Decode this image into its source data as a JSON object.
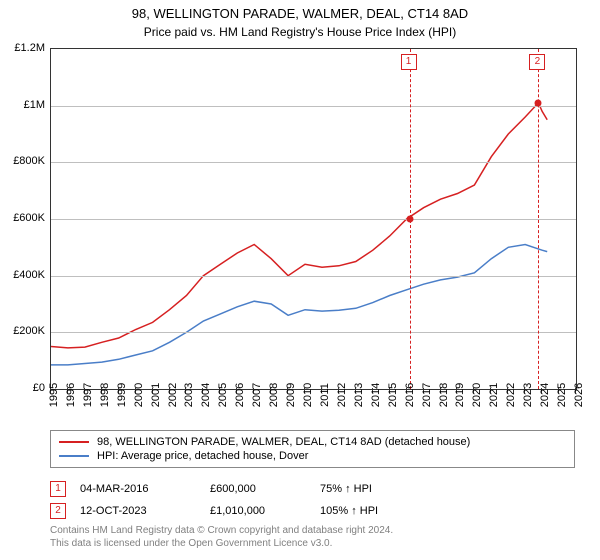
{
  "title": "98, WELLINGTON PARADE, WALMER, DEAL, CT14 8AD",
  "subtitle": "Price paid vs. HM Land Registry's House Price Index (HPI)",
  "chart": {
    "type": "line",
    "xlim": [
      1995,
      2026
    ],
    "ylim": [
      0,
      1200000
    ],
    "ytick_step": 200000,
    "ytick_labels": [
      "£0",
      "£200K",
      "£400K",
      "£600K",
      "£800K",
      "£1M",
      "£1.2M"
    ],
    "xticks": [
      1995,
      1996,
      1997,
      1998,
      1999,
      2000,
      2001,
      2002,
      2003,
      2004,
      2005,
      2006,
      2007,
      2008,
      2009,
      2010,
      2011,
      2012,
      2013,
      2014,
      2015,
      2016,
      2017,
      2018,
      2019,
      2020,
      2021,
      2022,
      2023,
      2024,
      2025,
      2026
    ],
    "grid_color": "#bfbfbf",
    "background_color": "#ffffff",
    "axis_color": "#333333",
    "series": [
      {
        "name": "property",
        "label": "98, WELLINGTON PARADE, WALMER, DEAL, CT14 8AD (detached house)",
        "color": "#d62021",
        "line_width": 1.5,
        "points": [
          [
            1995,
            150000
          ],
          [
            1996,
            145000
          ],
          [
            1997,
            148000
          ],
          [
            1998,
            165000
          ],
          [
            1999,
            180000
          ],
          [
            2000,
            210000
          ],
          [
            2001,
            235000
          ],
          [
            2002,
            280000
          ],
          [
            2003,
            330000
          ],
          [
            2004,
            400000
          ],
          [
            2005,
            440000
          ],
          [
            2006,
            480000
          ],
          [
            2007,
            510000
          ],
          [
            2008,
            460000
          ],
          [
            2009,
            400000
          ],
          [
            2010,
            440000
          ],
          [
            2011,
            430000
          ],
          [
            2012,
            435000
          ],
          [
            2013,
            450000
          ],
          [
            2014,
            490000
          ],
          [
            2015,
            540000
          ],
          [
            2016,
            600000
          ],
          [
            2017,
            640000
          ],
          [
            2018,
            670000
          ],
          [
            2019,
            690000
          ],
          [
            2020,
            720000
          ],
          [
            2021,
            820000
          ],
          [
            2022,
            900000
          ],
          [
            2023,
            960000
          ],
          [
            2023.78,
            1010000
          ],
          [
            2024,
            980000
          ],
          [
            2024.3,
            950000
          ]
        ]
      },
      {
        "name": "hpi",
        "label": "HPI: Average price, detached house, Dover",
        "color": "#4a7ec8",
        "line_width": 1.5,
        "points": [
          [
            1995,
            85000
          ],
          [
            1996,
            85000
          ],
          [
            1997,
            90000
          ],
          [
            1998,
            95000
          ],
          [
            1999,
            105000
          ],
          [
            2000,
            120000
          ],
          [
            2001,
            135000
          ],
          [
            2002,
            165000
          ],
          [
            2003,
            200000
          ],
          [
            2004,
            240000
          ],
          [
            2005,
            265000
          ],
          [
            2006,
            290000
          ],
          [
            2007,
            310000
          ],
          [
            2008,
            300000
          ],
          [
            2009,
            260000
          ],
          [
            2010,
            280000
          ],
          [
            2011,
            275000
          ],
          [
            2012,
            278000
          ],
          [
            2013,
            285000
          ],
          [
            2014,
            305000
          ],
          [
            2015,
            330000
          ],
          [
            2016,
            350000
          ],
          [
            2017,
            370000
          ],
          [
            2018,
            385000
          ],
          [
            2019,
            395000
          ],
          [
            2020,
            410000
          ],
          [
            2021,
            460000
          ],
          [
            2022,
            500000
          ],
          [
            2023,
            510000
          ],
          [
            2024,
            490000
          ],
          [
            2024.3,
            485000
          ]
        ]
      }
    ],
    "markers": [
      {
        "id": "1",
        "x": 2016.17,
        "y": 600000,
        "color": "#d62021"
      },
      {
        "id": "2",
        "x": 2023.78,
        "y": 1010000,
        "color": "#d62021"
      }
    ]
  },
  "legend": {
    "items": [
      {
        "color": "#d62021",
        "label": "98, WELLINGTON PARADE, WALMER, DEAL, CT14 8AD (detached house)"
      },
      {
        "color": "#4a7ec8",
        "label": "HPI: Average price, detached house, Dover"
      }
    ]
  },
  "sales": [
    {
      "id": "1",
      "color": "#d62021",
      "date": "04-MAR-2016",
      "price": "£600,000",
      "hpi": "75% ↑ HPI"
    },
    {
      "id": "2",
      "color": "#d62021",
      "date": "12-OCT-2023",
      "price": "£1,010,000",
      "hpi": "105% ↑ HPI"
    }
  ],
  "attribution": {
    "line1": "Contains HM Land Registry data © Crown copyright and database right 2024.",
    "line2": "This data is licensed under the Open Government Licence v3.0."
  },
  "attribution_color": "#808080"
}
